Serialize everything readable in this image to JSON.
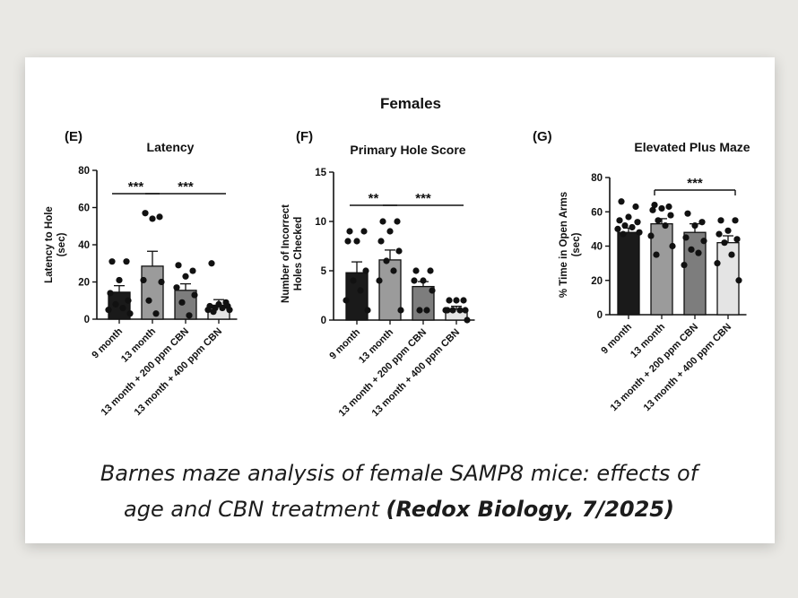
{
  "figure_title": "Females",
  "caption": {
    "line1": "Barnes maze analysis of  female SAMP8 mice: effects of",
    "line2_plain": "age and CBN treatment ",
    "line2_bold": "(Redox Biology, 7/2025)"
  },
  "colors": {
    "bar_9m": "#1a1a1a",
    "bar_13m": "#9b9b9b",
    "bar_200": "#7d7d7d",
    "bar_400": "#e4e4e4",
    "dot": "#111111",
    "background": "#e9e8e4",
    "card": "#ffffff"
  },
  "chart_data": [
    {
      "panel": "(E)",
      "type": "bar",
      "title": "Latency",
      "ylabel_lines": [
        "Latency to Hole",
        "(sec)"
      ],
      "xlabel": "",
      "ylim": [
        0,
        80
      ],
      "yticks": [
        0,
        20,
        40,
        60,
        80
      ],
      "categories": [
        "9 month",
        "13 month",
        "13 month + 200 ppm CBN",
        "13 month + 400 ppm CBN"
      ],
      "values": [
        14.5,
        28.5,
        15.5,
        7.5
      ],
      "sem": [
        3.5,
        8.0,
        3.5,
        3.0
      ],
      "points": [
        [
          31,
          31,
          21,
          14,
          10,
          8,
          6,
          5,
          3
        ],
        [
          57,
          55,
          54,
          21,
          20,
          10,
          3
        ],
        [
          29,
          26,
          23,
          17,
          13,
          9,
          2
        ],
        [
          30,
          9,
          8,
          7,
          7,
          6,
          6,
          5,
          5,
          4
        ]
      ],
      "significance": [
        {
          "from": 0,
          "to": 1,
          "label": "***"
        },
        {
          "from": 1,
          "to": 3,
          "label": "***"
        }
      ]
    },
    {
      "panel": "(F)",
      "type": "bar",
      "title": "Primary Hole Score",
      "ylabel_lines": [
        "Number of Incorrect",
        "Holes Checked"
      ],
      "xlabel": "",
      "ylim": [
        0,
        15
      ],
      "yticks": [
        0,
        5,
        10,
        15
      ],
      "categories": [
        "9 month",
        "13 month",
        "13 month + 200 ppm CBN",
        "13 month + 400 ppm CBN"
      ],
      "values": [
        4.8,
        6.1,
        3.4,
        1.1
      ],
      "sem": [
        1.1,
        1.0,
        0.5,
        0.3
      ],
      "points": [
        [
          9,
          9,
          8,
          8,
          5,
          4,
          3,
          2,
          1
        ],
        [
          10,
          10,
          9,
          8,
          7,
          6,
          5,
          4,
          1
        ],
        [
          5,
          5,
          4,
          4,
          3,
          1,
          1
        ],
        [
          2,
          2,
          2,
          1,
          1,
          1,
          1,
          1,
          0
        ]
      ],
      "significance": [
        {
          "from": 0,
          "to": 1,
          "label": "**"
        },
        {
          "from": 1,
          "to": 3,
          "label": "***"
        }
      ]
    },
    {
      "panel": "(G)",
      "type": "bar",
      "title": "Elevated Plus Maze",
      "ylabel_lines": [
        "% Time in Open Arms",
        "(sec)"
      ],
      "xlabel": "",
      "ylim": [
        0,
        80
      ],
      "yticks": [
        0,
        20,
        40,
        60,
        80
      ],
      "categories": [
        "9 month",
        "13 month",
        "13 month + 200 ppm CBN",
        "13 month + 400 ppm CBN"
      ],
      "values": [
        48,
        53,
        48,
        42
      ],
      "sem": [
        2.5,
        3.0,
        5.0,
        4.0
      ],
      "points": [
        [
          66,
          63,
          57,
          55,
          54,
          52,
          51,
          50,
          48,
          47
        ],
        [
          64,
          63,
          62,
          61,
          58,
          55,
          52,
          46,
          40,
          35
        ],
        [
          59,
          54,
          52,
          45,
          43,
          38,
          36,
          29
        ],
        [
          55,
          55,
          49,
          47,
          44,
          42,
          35,
          30,
          20
        ]
      ],
      "significance": [
        {
          "from": 1,
          "to": 3,
          "label": "***"
        }
      ]
    }
  ]
}
